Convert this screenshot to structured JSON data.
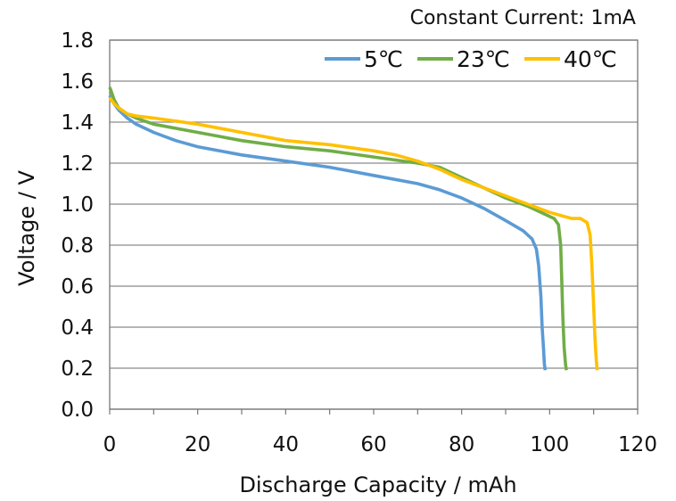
{
  "chart_data": {
    "type": "line",
    "annotation": "Constant Current: 1mA",
    "xlabel": "Discharge Capacity / mAh",
    "ylabel": "Voltage / V",
    "xlim": [
      0,
      120
    ],
    "ylim": [
      0.0,
      1.8
    ],
    "xticks": [
      0,
      20,
      40,
      60,
      80,
      100,
      120
    ],
    "yticks": [
      0.0,
      0.2,
      0.4,
      0.6,
      0.8,
      1.0,
      1.2,
      1.4,
      1.6,
      1.8
    ],
    "grid": "horizontal",
    "legend_position": "top-right",
    "series": [
      {
        "name": "5℃",
        "color": "#5b9bd5",
        "x": [
          0,
          1,
          2,
          4,
          6,
          10,
          15,
          20,
          30,
          40,
          50,
          60,
          70,
          75,
          80,
          85,
          90,
          94,
          96,
          97,
          97.5,
          98,
          98.3,
          98.6,
          98.8,
          99
        ],
        "y": [
          1.53,
          1.49,
          1.46,
          1.42,
          1.39,
          1.35,
          1.31,
          1.28,
          1.24,
          1.21,
          1.18,
          1.14,
          1.1,
          1.07,
          1.03,
          0.98,
          0.92,
          0.87,
          0.83,
          0.78,
          0.7,
          0.55,
          0.4,
          0.3,
          0.22,
          0.19
        ]
      },
      {
        "name": "23℃",
        "color": "#70ad47",
        "x": [
          0,
          0.5,
          1,
          2,
          4,
          6,
          10,
          20,
          30,
          40,
          50,
          60,
          70,
          75,
          80,
          85,
          90,
          95,
          99,
          101,
          102,
          102.5,
          102.8,
          103,
          103.3,
          103.6,
          103.8
        ],
        "y": [
          1.57,
          1.54,
          1.51,
          1.47,
          1.44,
          1.42,
          1.39,
          1.35,
          1.31,
          1.28,
          1.26,
          1.23,
          1.2,
          1.18,
          1.13,
          1.08,
          1.03,
          0.99,
          0.95,
          0.93,
          0.9,
          0.8,
          0.6,
          0.45,
          0.3,
          0.22,
          0.19
        ]
      },
      {
        "name": "40℃",
        "color": "#ffc000",
        "x": [
          0,
          1,
          2,
          4,
          6,
          10,
          20,
          30,
          40,
          50,
          60,
          65,
          70,
          75,
          80,
          85,
          90,
          95,
          100,
          105,
          107,
          108.5,
          109.2,
          109.6,
          110,
          110.3,
          110.6,
          110.8
        ],
        "y": [
          1.52,
          1.49,
          1.47,
          1.44,
          1.43,
          1.42,
          1.39,
          1.35,
          1.31,
          1.29,
          1.26,
          1.24,
          1.21,
          1.17,
          1.12,
          1.08,
          1.04,
          1.0,
          0.96,
          0.93,
          0.93,
          0.91,
          0.85,
          0.7,
          0.5,
          0.35,
          0.24,
          0.19
        ]
      }
    ]
  }
}
